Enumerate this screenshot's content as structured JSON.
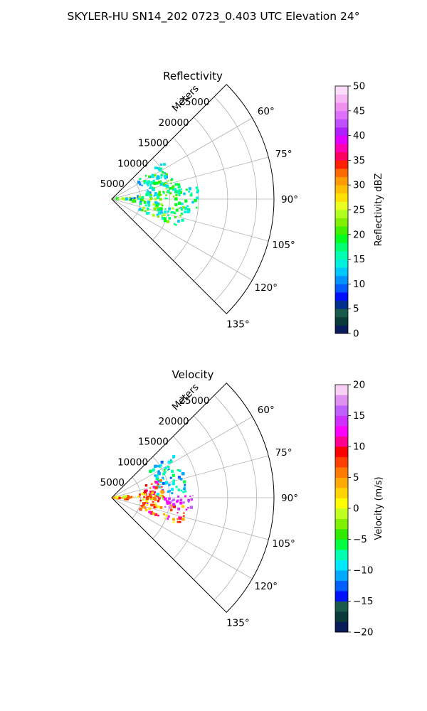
{
  "figure": {
    "suptitle": "SKYLER-HU  SN14_202  0723_0.403 UTC Elevation 24°"
  },
  "chart_data": [
    {
      "type": "heatmap",
      "title": "Reflectivity",
      "radial_axis_label": "Meters",
      "radial_ticks": [
        5000,
        10000,
        15000,
        20000,
        25000
      ],
      "radial_tick_labels": [
        "5000",
        "10000",
        "15000",
        "20000",
        "25000"
      ],
      "radial_range": [
        0,
        28000
      ],
      "azimuth_range_deg": [
        45,
        135
      ],
      "azimuth_ticks": [
        60,
        75,
        90,
        105,
        120,
        135
      ],
      "azimuth_tick_labels": [
        "60°",
        "75°",
        "90°",
        "105°",
        "120°",
        "135°"
      ],
      "grid": true,
      "colorbar": {
        "label": "Reflectivity dBZ",
        "range": [
          0,
          50
        ],
        "ticks": [
          0,
          5,
          10,
          15,
          20,
          25,
          30,
          35,
          40,
          45,
          50
        ],
        "tick_labels": [
          "0",
          "5",
          "10",
          "15",
          "20",
          "25",
          "30",
          "35",
          "40",
          "45",
          "50"
        ],
        "levels": 25,
        "colors": [
          "#0b1c5c",
          "#0b3a3a",
          "#1a5a4a",
          "#00308a",
          "#0010ff",
          "#005aff",
          "#0092ff",
          "#00c8ff",
          "#00f0e0",
          "#00ffb0",
          "#00ff70",
          "#00ff20",
          "#40ee00",
          "#80f000",
          "#b0ff20",
          "#e8ff20",
          "#ffe000",
          "#ffbf00",
          "#ff9a00",
          "#ff6a00",
          "#ff2000",
          "#ff0060",
          "#ff00b0",
          "#e000ff",
          "#b020ff",
          "#c050ff",
          "#e070ff",
          "#f090f0",
          "#f6b8f4",
          "#fbdcfa"
        ]
      },
      "echo_regions": [
        {
          "az": [
            54,
            86
          ],
          "range_m": [
            5500,
            11000
          ],
          "value_dbz": [
            10,
            22
          ]
        },
        {
          "az": [
            72,
            90
          ],
          "range_m": [
            9000,
            12000
          ],
          "value_dbz": [
            14,
            28
          ]
        },
        {
          "az": [
            83,
            96
          ],
          "range_m": [
            0,
            9000
          ],
          "value_dbz": [
            8,
            26
          ]
        },
        {
          "az": [
            95,
            112
          ],
          "range_m": [
            5000,
            13000
          ],
          "value_dbz": [
            12,
            24
          ]
        },
        {
          "az": [
            80,
            100
          ],
          "range_m": [
            11000,
            15000
          ],
          "value_dbz": [
            12,
            20
          ]
        }
      ]
    },
    {
      "type": "heatmap",
      "title": "Velocity",
      "radial_axis_label": "Meters",
      "radial_ticks": [
        5000,
        10000,
        15000,
        20000,
        25000
      ],
      "radial_tick_labels": [
        "5000",
        "10000",
        "15000",
        "20000",
        "25000"
      ],
      "radial_range": [
        0,
        28000
      ],
      "azimuth_range_deg": [
        45,
        135
      ],
      "azimuth_ticks": [
        60,
        75,
        90,
        105,
        120,
        135
      ],
      "azimuth_tick_labels": [
        "60°",
        "75°",
        "90°",
        "105°",
        "120°",
        "135°"
      ],
      "grid": true,
      "colorbar": {
        "label": "Velocity (m/s)",
        "range": [
          -20,
          20
        ],
        "ticks": [
          -20,
          -15,
          -10,
          -5,
          0,
          5,
          10,
          15,
          20
        ],
        "tick_labels": [
          "−20",
          "−15",
          "−10",
          "−5",
          "0",
          "5",
          "10",
          "15",
          "20"
        ],
        "levels": 20,
        "colors": [
          "#0b1c5c",
          "#0b3a3a",
          "#1a5a4a",
          "#0010ff",
          "#0060ff",
          "#00a8ff",
          "#00e8ff",
          "#00ffb0",
          "#00ff40",
          "#30e800",
          "#80f000",
          "#c0ff20",
          "#ffff00",
          "#ffd400",
          "#ffaa00",
          "#ff7a00",
          "#ff4000",
          "#ff0000",
          "#ff0090",
          "#ff00ff",
          "#d030ff",
          "#c060ff",
          "#e090f0",
          "#f8d0f6"
        ]
      },
      "echo_regions": [
        {
          "az": [
            54,
            86
          ],
          "range_m": [
            8000,
            13000
          ],
          "value_ms": [
            -12,
            -6
          ]
        },
        {
          "az": [
            70,
            92
          ],
          "range_m": [
            5500,
            9000
          ],
          "value_ms": [
            4,
            12
          ]
        },
        {
          "az": [
            83,
            96
          ],
          "range_m": [
            0,
            9000
          ],
          "value_ms": [
            -2,
            10
          ]
        },
        {
          "az": [
            95,
            112
          ],
          "range_m": [
            5000,
            13000
          ],
          "value_ms": [
            0,
            14
          ]
        },
        {
          "az": [
            88,
            100
          ],
          "range_m": [
            9000,
            14000
          ],
          "value_ms": [
            12,
            18
          ]
        }
      ]
    }
  ]
}
